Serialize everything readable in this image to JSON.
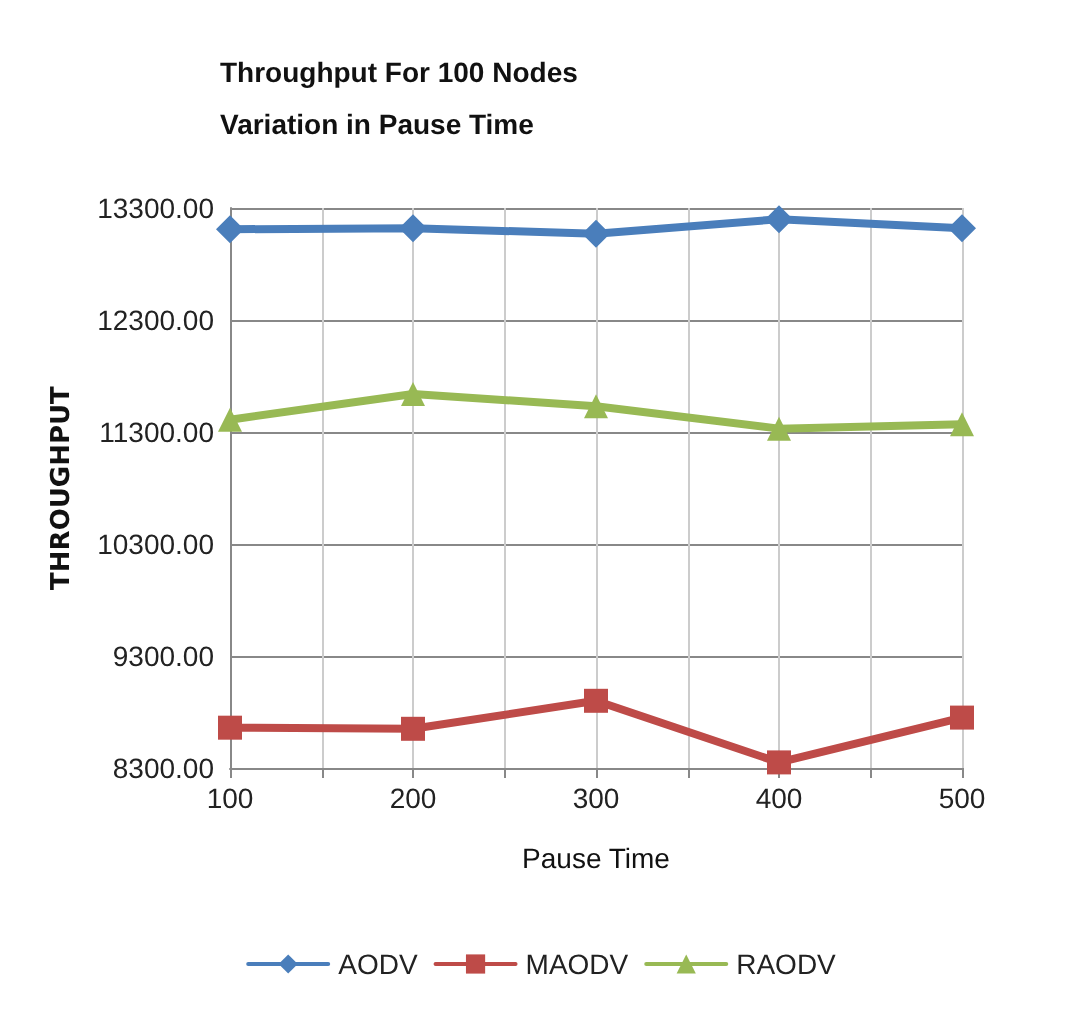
{
  "chart_data": {
    "type": "line",
    "title": "Throughput For 100 Nodes\nVariation in Pause Time",
    "xlabel": "Pause Time",
    "ylabel": "THROUGHPUT",
    "x": [
      100,
      200,
      300,
      400,
      500
    ],
    "series": [
      {
        "name": "AODV",
        "color": "#4a7ebb",
        "marker": "diamond",
        "values": [
          13110,
          13120,
          13070,
          13200,
          13120
        ]
      },
      {
        "name": "MAODV",
        "color": "#be4b48",
        "marker": "square",
        "values": [
          8660,
          8650,
          8900,
          8350,
          8750
        ]
      },
      {
        "name": "RAODV",
        "color": "#98b954",
        "marker": "triangle",
        "values": [
          11410,
          11640,
          11530,
          11330,
          11370
        ]
      }
    ],
    "xlim": [
      100,
      500
    ],
    "xticks": [
      100,
      {
        "value": 150,
        "label": null
      },
      200,
      {
        "value": 250,
        "label": null
      },
      300,
      {
        "value": 350,
        "label": null
      },
      400,
      {
        "value": 450,
        "label": null
      },
      500
    ],
    "ylim": [
      8300,
      13300
    ],
    "yticks": [
      {
        "value": 8300,
        "label": "8300.00"
      },
      {
        "value": 9300,
        "label": "9300.00"
      },
      {
        "value": 10300,
        "label": "10300.00"
      },
      {
        "value": 11300,
        "label": "11300.00"
      },
      {
        "value": 12300,
        "label": "12300.00"
      },
      {
        "value": 13300,
        "label": "13300.00"
      }
    ],
    "grid": true,
    "legend": "bottom",
    "line_style": "solid"
  }
}
